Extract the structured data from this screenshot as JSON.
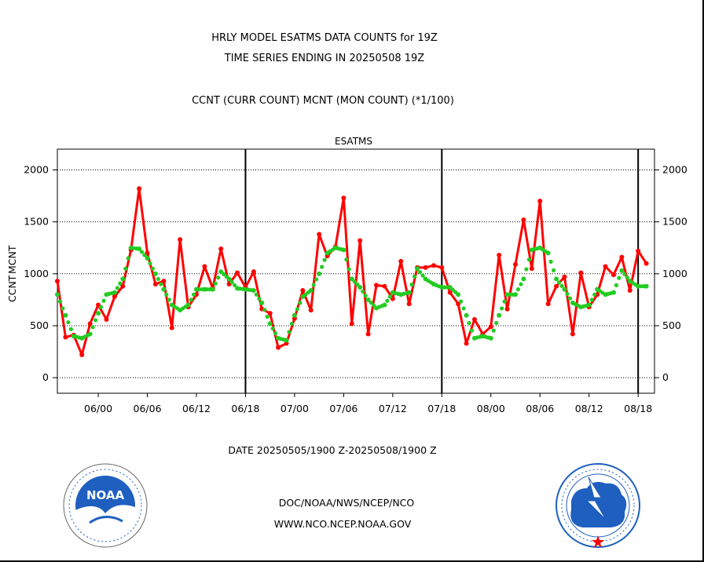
{
  "title_line1": "HRLY MODEL ESATMS DATA COUNTS for 19Z",
  "title_line2": "TIME SERIES ENDING IN 20250508 19Z",
  "legend_line": "CCNT (CURR COUNT) MCNT (MON COUNT) (*1/100)",
  "panel_label": "ESATMS",
  "ylabel_ccnt": "CCNT",
  "ylabel_mcnt": "MCNT",
  "date_range": "DATE 20250505/1900 Z-20250508/1900 Z",
  "footer_org": "DOC/NOAA/NWS/NCEP/NCO",
  "footer_url": "WWW.NCO.NCEP.NOAA.GOV",
  "logo_left_text": "NOAA",
  "logo_left_ring": "NATIONAL OCEANIC AND ATMOSPHERIC ADMINISTRATION · U.S. DEPARTMENT OF COMMERCE",
  "logo_right_ring": "NATIONAL WEATHER SERVICE",
  "colors": {
    "ccnt": "#ff0000",
    "mcnt": "#22cc22",
    "axis": "#000000",
    "text_blue": "#0000cc"
  },
  "chart_data": {
    "type": "line",
    "ylim": [
      -150,
      2200
    ],
    "yticks": [
      0,
      500,
      1000,
      1500,
      2000
    ],
    "x_range_hours": [
      0,
      73
    ],
    "x_tick_labels": [
      "06/00",
      "06/06",
      "06/12",
      "06/18",
      "07/00",
      "07/06",
      "07/12",
      "07/18",
      "08/00",
      "08/06",
      "08/12",
      "08/18"
    ],
    "x_tick_hours": [
      5,
      11,
      17,
      23,
      29,
      35,
      41,
      47,
      53,
      59,
      65,
      71
    ],
    "day_boundary_hours": [
      23,
      47,
      71
    ],
    "grid": true,
    "series": [
      {
        "name": "CCNT",
        "style": "solid",
        "values": [
          930,
          390,
          410,
          220,
          520,
          700,
          560,
          780,
          880,
          1230,
          1820,
          1200,
          900,
          930,
          480,
          1330,
          680,
          800,
          1070,
          860,
          1240,
          900,
          1010,
          870,
          1020,
          660,
          620,
          290,
          330,
          570,
          840,
          650,
          1380,
          1170,
          1260,
          1730,
          520,
          1320,
          420,
          890,
          880,
          760,
          1120,
          710,
          1060,
          1060,
          1080,
          1060,
          820,
          710,
          330,
          560,
          420,
          490,
          1180,
          660,
          1090,
          1520,
          1050,
          1700,
          710,
          880,
          970,
          420,
          1010,
          680,
          800,
          1070,
          990,
          1160,
          840,
          1220,
          1100
        ]
      },
      {
        "name": "MCNT",
        "style": "dotted",
        "values": [
          800,
          600,
          400,
          380,
          420,
          620,
          800,
          820,
          950,
          1250,
          1240,
          1150,
          1000,
          850,
          700,
          650,
          700,
          850,
          850,
          850,
          1020,
          950,
          860,
          850,
          840,
          720,
          520,
          380,
          360,
          600,
          780,
          840,
          1000,
          1200,
          1250,
          1230,
          950,
          870,
          750,
          670,
          700,
          820,
          800,
          820,
          1050,
          950,
          900,
          870,
          870,
          800,
          600,
          380,
          400,
          380,
          600,
          800,
          800,
          950,
          1230,
          1250,
          1200,
          950,
          850,
          720,
          680,
          700,
          850,
          800,
          820,
          1030,
          930,
          880,
          880
        ]
      }
    ]
  }
}
